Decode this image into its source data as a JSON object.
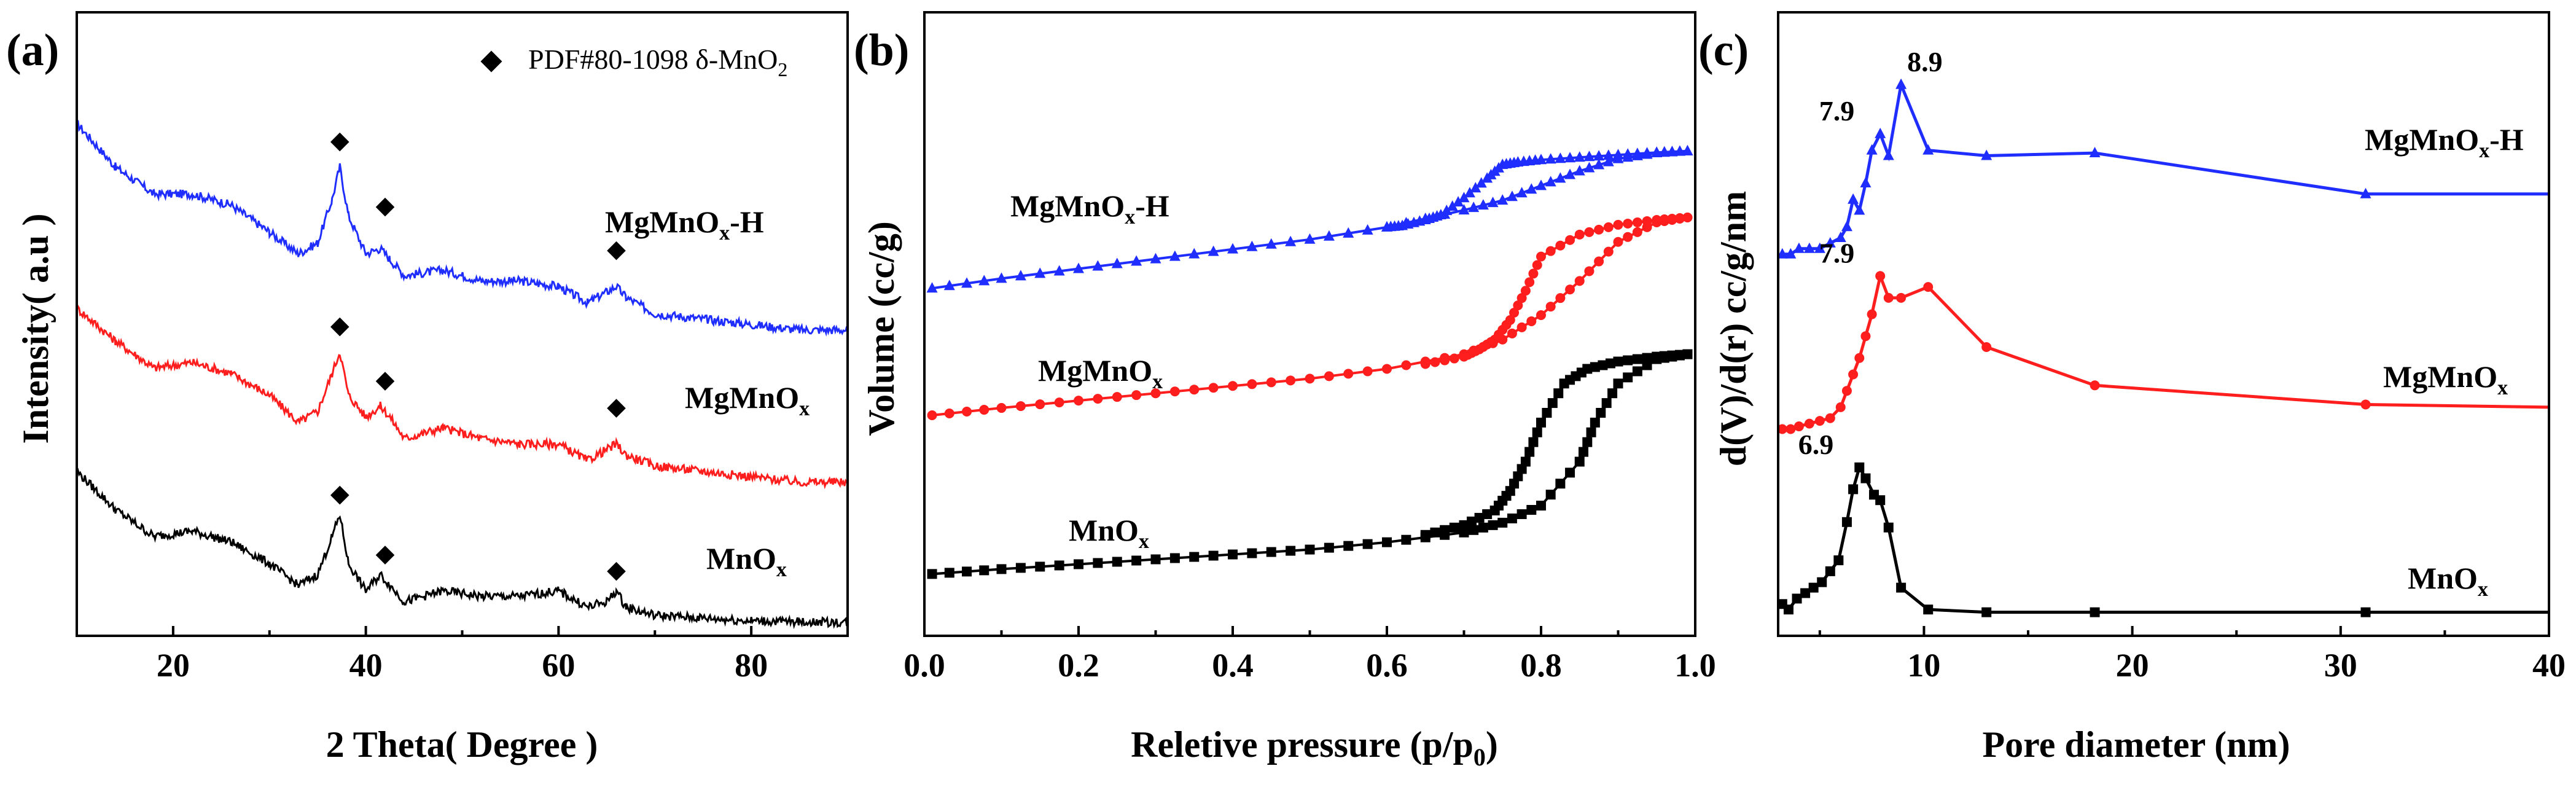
{
  "colors": {
    "blue": "#1f2eff",
    "red": "#ff1e1e",
    "black": "#000000"
  },
  "chart_data": [
    {
      "id": "a",
      "type": "line",
      "panel_label": "(a)",
      "xlabel": "2 Theta( Degree )",
      "ylabel": "Intensity( a.u )",
      "xlim": [
        10,
        90
      ],
      "ylim": [
        0,
        100
      ],
      "xticks": [
        "20",
        "40",
        "60",
        "80"
      ],
      "xtick_values": [
        20,
        40,
        60,
        80
      ],
      "legend": {
        "marker": "◆",
        "text": "PDF#80-1098  δ-MnO",
        "sub": "2",
        "placement": "top-right"
      },
      "peaks_x": [
        37.3,
        42.0,
        66.0
      ],
      "series": [
        {
          "name": "MgMnOx-H",
          "label_main": "MgMnO",
          "label_sub": "x",
          "label_tail": "-H",
          "color": "blue",
          "x": [
            10,
            14,
            18,
            22,
            26,
            30,
            33,
            35,
            36.5,
            37.3,
            38.2,
            40,
            41.5,
            42.5,
            44,
            48,
            52,
            56,
            60,
            63,
            65,
            66,
            67,
            70,
            75,
            80,
            85,
            90
          ],
          "y": [
            92,
            84,
            79,
            79,
            77,
            72,
            68,
            70,
            78,
            84,
            75,
            68,
            69,
            67,
            64,
            65,
            63,
            63,
            62,
            59,
            61,
            62,
            60,
            57,
            56,
            55,
            54,
            54
          ],
          "peak_y": [
            89,
            77,
            69
          ]
        },
        {
          "name": "MgMnOx",
          "label_main": "MgMnO",
          "label_sub": "x",
          "label_tail": "",
          "color": "red",
          "x": [
            10,
            14,
            18,
            22,
            26,
            30,
            33,
            35,
            36.5,
            37.3,
            38.2,
            40,
            41.5,
            42.5,
            44,
            48,
            52,
            56,
            60,
            63,
            65,
            66,
            67,
            70,
            75,
            80,
            85,
            90
          ],
          "y": [
            58,
            52,
            47,
            48,
            46,
            42,
            37,
            39,
            46,
            50,
            42,
            38,
            40,
            38,
            34,
            36,
            34,
            33,
            33,
            30,
            32,
            33,
            31,
            29,
            28,
            27,
            26,
            26
          ],
          "peak_y": [
            55,
            45,
            40
          ]
        },
        {
          "name": "MnOx",
          "label_main": "MnO",
          "label_sub": "x",
          "label_tail": "",
          "color": "black",
          "x": [
            10,
            14,
            18,
            22,
            26,
            30,
            33,
            35,
            36.5,
            37.3,
            38.2,
            40,
            41.5,
            42.5,
            44,
            48,
            52,
            56,
            60,
            63,
            65,
            66,
            67,
            70,
            75,
            80,
            85,
            90
          ],
          "y": [
            28,
            21,
            16,
            17,
            15,
            11,
            7,
            9,
            16,
            20,
            11,
            6,
            9,
            7,
            4,
            6,
            5,
            5,
            6,
            3,
            4,
            6,
            3,
            1.5,
            1,
            0.5,
            0.3,
            0.2
          ],
          "peak_y": [
            24,
            13,
            10
          ]
        }
      ]
    },
    {
      "id": "b",
      "type": "line",
      "panel_label": "(b)",
      "xlabel": "Reletive pressure (p/p",
      "xlabel_sub": "0",
      "xlabel_tail": ")",
      "ylabel": "Volume (cc/g)",
      "xlim": [
        0.0,
        1.0
      ],
      "ylim": [
        0,
        100
      ],
      "xticks": [
        "0.0",
        "0.2",
        "0.4",
        "0.6",
        "0.8",
        "1.0"
      ],
      "xtick_values": [
        0.0,
        0.2,
        0.4,
        0.6,
        0.8,
        1.0
      ],
      "series": [
        {
          "name": "MgMnOx-H",
          "label_main": "MgMnO",
          "label_sub": "x",
          "label_tail": "-H",
          "color": "blue",
          "marker": "triangle",
          "adsorption": {
            "x": [
              0.01,
              0.1,
              0.2,
              0.3,
              0.4,
              0.5,
              0.6,
              0.7,
              0.75,
              0.8,
              0.85,
              0.9,
              0.95,
              0.99
            ],
            "y": [
              65.5,
              67.5,
              69.5,
              71.5,
              73.5,
              75.5,
              78,
              81.5,
              83.5,
              86.5,
              89.5,
              92,
              93.2,
              93.6
            ]
          },
          "desorption": {
            "x": [
              0.99,
              0.95,
              0.9,
              0.85,
              0.8,
              0.77,
              0.75,
              0.73,
              0.7,
              0.67,
              0.65,
              0.62,
              0.6
            ],
            "y": [
              93.6,
              93.3,
              92.8,
              92.3,
              91.8,
              91.3,
              90.8,
              88,
              84,
              80.5,
              79.5,
              78.3,
              78
            ]
          }
        },
        {
          "name": "MgMnOx",
          "label_main": "MgMnO",
          "label_sub": "x",
          "label_tail": "",
          "color": "red",
          "marker": "circle",
          "adsorption": {
            "x": [
              0.01,
              0.1,
              0.2,
              0.3,
              0.4,
              0.5,
              0.6,
              0.7,
              0.75,
              0.8,
              0.85,
              0.9,
              0.95,
              0.99
            ],
            "y": [
              39.5,
              41,
              42.5,
              44,
              45.5,
              47,
              49,
              52,
              55,
              60,
              67,
              75,
              79,
              80
            ]
          },
          "desorption": {
            "x": [
              0.99,
              0.95,
              0.9,
              0.85,
              0.8,
              0.78,
              0.76,
              0.74,
              0.72,
              0.7,
              0.65
            ],
            "y": [
              80,
              79.5,
              78.5,
              76.5,
              72,
              65,
              59,
              55,
              53,
              51.5,
              50
            ]
          }
        },
        {
          "name": "MnOx",
          "label_main": "MnO",
          "label_sub": "x",
          "label_tail": "",
          "color": "black",
          "marker": "square",
          "adsorption": {
            "x": [
              0.01,
              0.1,
              0.2,
              0.3,
              0.4,
              0.5,
              0.6,
              0.7,
              0.75,
              0.8,
              0.85,
              0.87,
              0.9,
              0.95,
              0.99
            ],
            "y": [
              7,
              8,
              9,
              10,
              11,
              12,
              13.5,
              15.5,
              17.5,
              21,
              30,
              38,
              46,
              51,
              52
            ]
          },
          "desorption": {
            "x": [
              0.99,
              0.95,
              0.9,
              0.86,
              0.83,
              0.8,
              0.78,
              0.76,
              0.74,
              0.7,
              0.65
            ],
            "y": [
              52,
              51.5,
              50.5,
              49,
              46,
              38,
              30,
              24,
              20,
              17,
              15
            ]
          }
        }
      ]
    },
    {
      "id": "c",
      "type": "line",
      "panel_label": "(c)",
      "xlabel": "Pore diameter (nm)",
      "ylabel": "d(V)/d(r) cc/g/nm",
      "xlim": [
        3,
        40
      ],
      "ylim": [
        0,
        100
      ],
      "xticks": [
        "10",
        "20",
        "30",
        "40"
      ],
      "xtick_values": [
        10,
        20,
        30,
        40
      ],
      "series": [
        {
          "name": "MgMnOx-H",
          "label_main": "MgMnO",
          "label_sub": "x",
          "label_tail": "-H",
          "color": "blue",
          "marker": "triangle",
          "x": [
            3.2,
            3.6,
            4.0,
            4.5,
            5.0,
            5.5,
            6.0,
            6.3,
            6.6,
            6.9,
            7.2,
            7.5,
            7.9,
            8.3,
            8.9,
            10.2,
            13.0,
            18.2,
            31.2,
            40
          ],
          "y": [
            67,
            67,
            68,
            68,
            68,
            69,
            70,
            72,
            77,
            75,
            80,
            86,
            89,
            85,
            98,
            86,
            85,
            85.5,
            78,
            78
          ],
          "peak_labels": [
            {
              "text": "7.9",
              "x": 7.9,
              "y": 89
            },
            {
              "text": "8.9",
              "x": 8.9,
              "y": 98
            }
          ]
        },
        {
          "name": "MgMnOx",
          "label_main": "MgMnO",
          "label_sub": "x",
          "label_tail": "",
          "color": "red",
          "marker": "circle",
          "x": [
            3.2,
            3.6,
            4.0,
            4.5,
            5.0,
            5.5,
            6.0,
            6.3,
            6.6,
            6.9,
            7.2,
            7.5,
            7.9,
            8.3,
            8.9,
            10.2,
            13.0,
            18.2,
            31.2,
            40
          ],
          "y": [
            35,
            35,
            35.5,
            36,
            36.5,
            37,
            39,
            42,
            45,
            48,
            52,
            56,
            63,
            59,
            59,
            61,
            50,
            43,
            39.5,
            39
          ],
          "peak_labels": [
            {
              "text": "7.9",
              "x": 7.9,
              "y": 63
            }
          ]
        },
        {
          "name": "MnOx",
          "label_main": "MnO",
          "label_sub": "x",
          "label_tail": "",
          "color": "black",
          "marker": "square",
          "x": [
            3.2,
            3.5,
            3.9,
            4.3,
            4.7,
            5.1,
            5.5,
            5.9,
            6.3,
            6.6,
            6.9,
            7.2,
            7.6,
            7.9,
            8.3,
            8.9,
            10.2,
            13.0,
            18.2,
            31.2,
            40
          ],
          "y": [
            3,
            2,
            4,
            5,
            6,
            7,
            9,
            11,
            18,
            24,
            28,
            26,
            23,
            22,
            17,
            6,
            2,
            1.5,
            1.5,
            1.5,
            1.5
          ],
          "peak_labels": [
            {
              "text": "6.9",
              "x": 6.9,
              "y": 28
            }
          ]
        }
      ]
    }
  ]
}
